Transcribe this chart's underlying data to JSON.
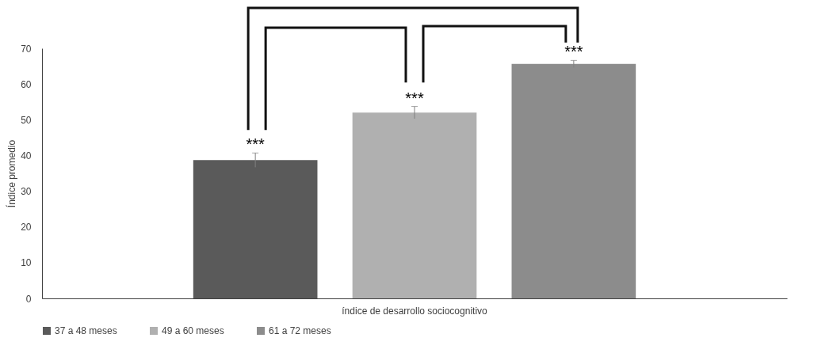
{
  "chart_data": {
    "type": "bar",
    "ylabel": "Índice promedio",
    "categories": [
      "índice de desarrollo sociocognitivo"
    ],
    "series": [
      {
        "name": "37 a 48 meses",
        "color": "#5a5a5a",
        "values": [
          38.7
        ],
        "errors": [
          2
        ]
      },
      {
        "name": "49 a 60 meses",
        "color": "#b0b0b0",
        "values": [
          52
        ],
        "errors": [
          1.7
        ]
      },
      {
        "name": "61 a 72 meses",
        "color": "#8c8c8c",
        "values": [
          65.6
        ],
        "errors": [
          1
        ]
      }
    ],
    "ylim": [
      0,
      70
    ],
    "yticks": [
      0,
      10,
      20,
      30,
      40,
      50,
      60,
      70
    ],
    "grid": false,
    "legend": "bottom",
    "annotations": [
      "***",
      "***",
      "***"
    ]
  }
}
